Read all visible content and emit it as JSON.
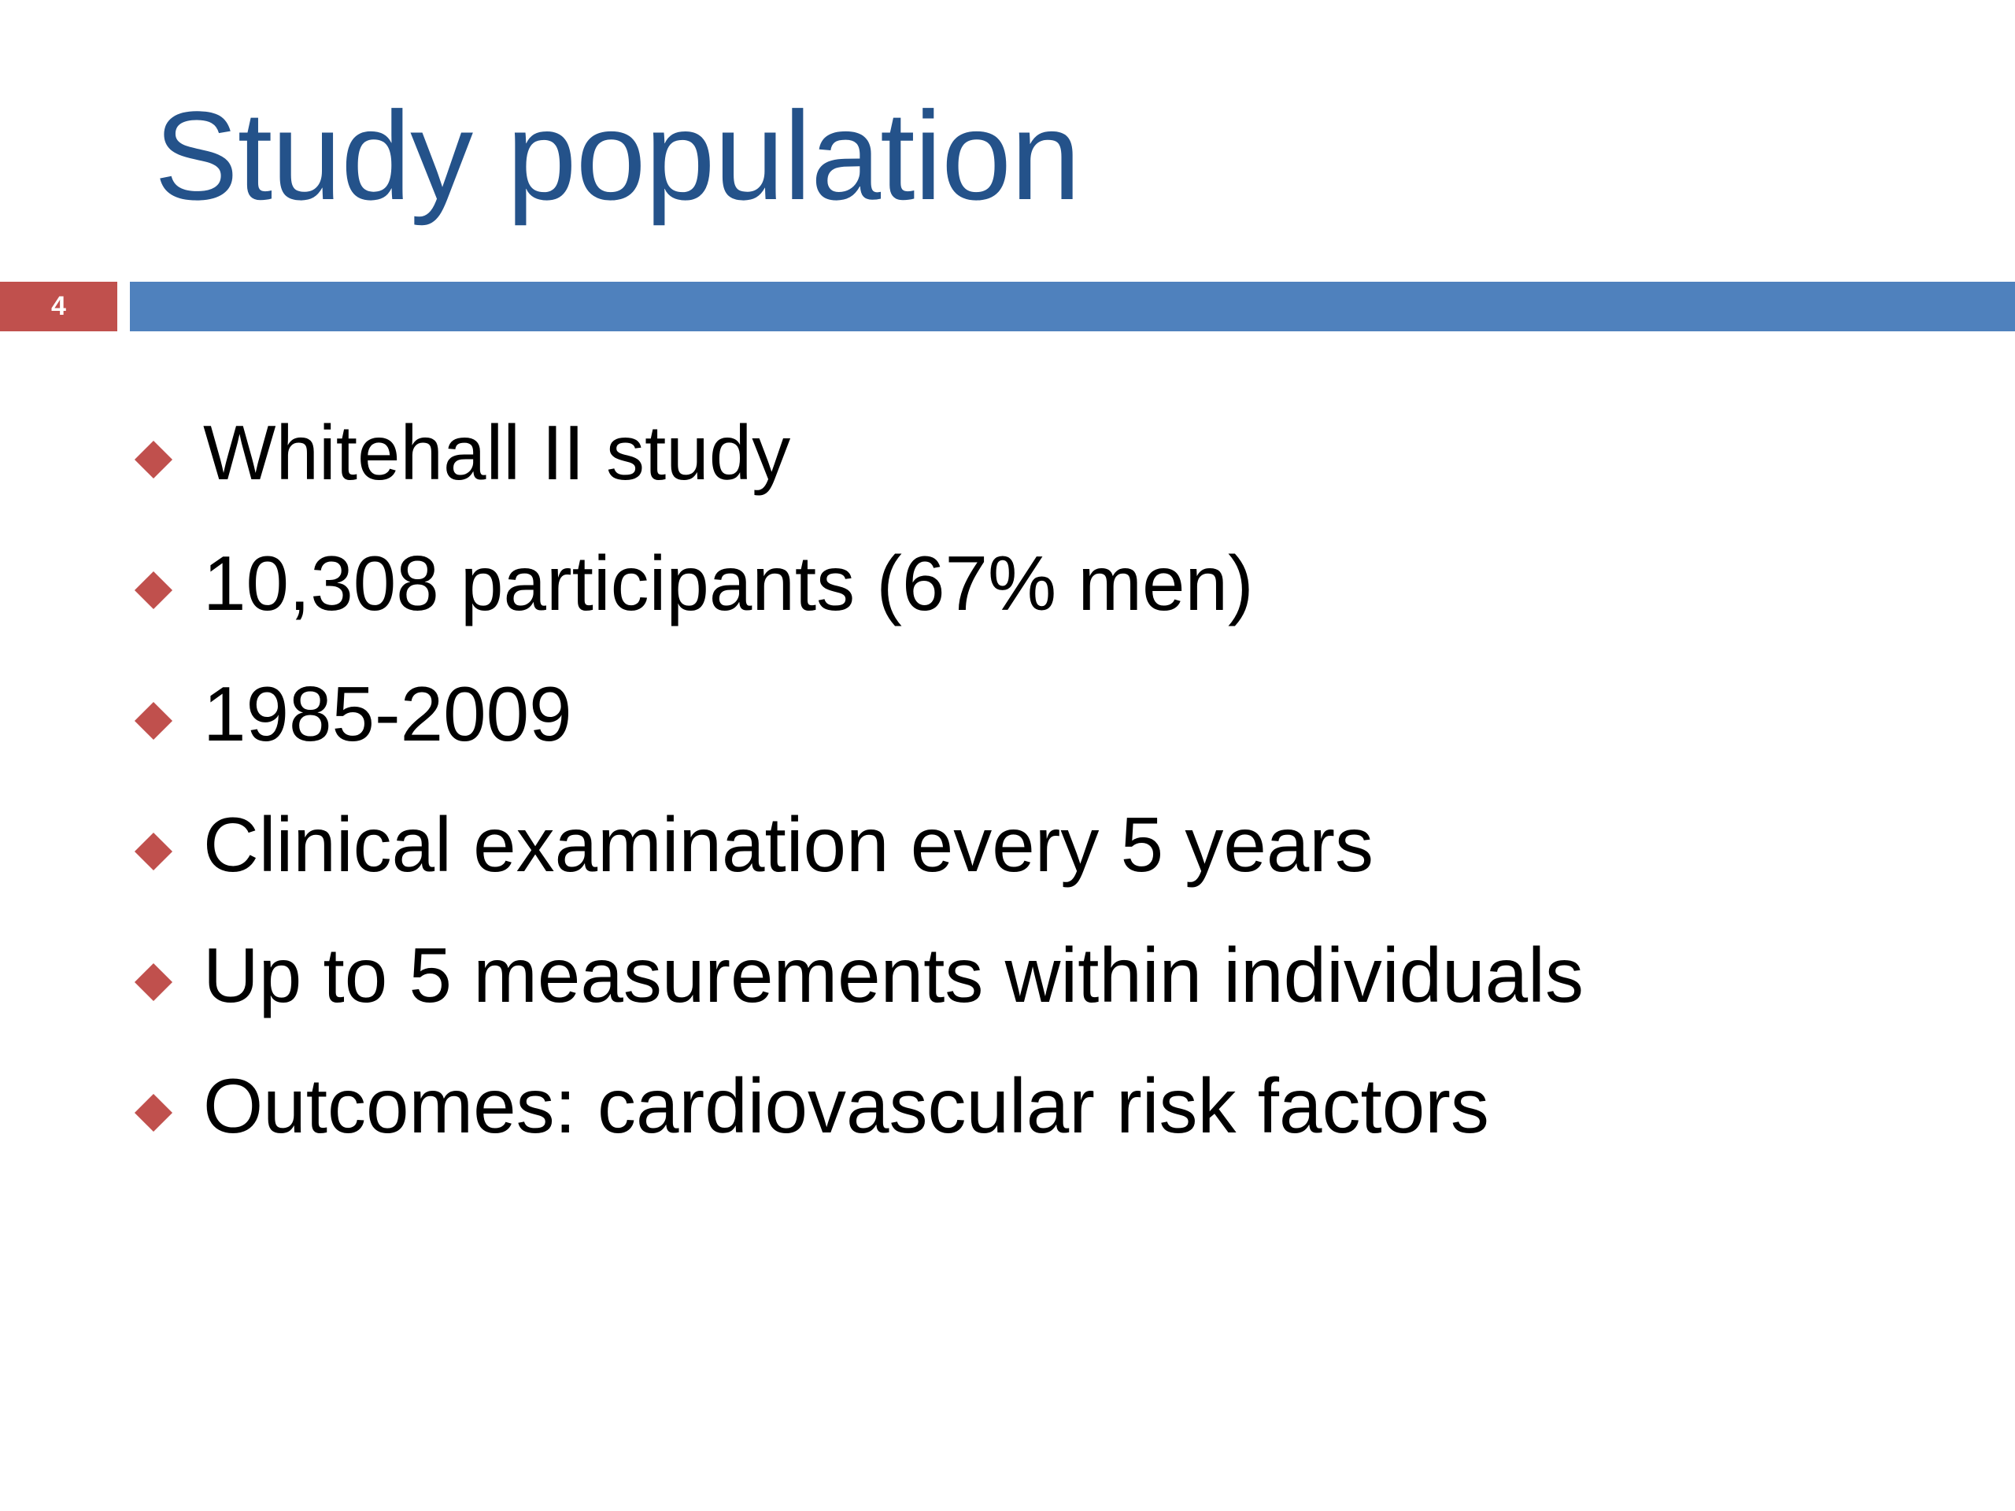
{
  "slide": {
    "title": "Study population",
    "number": "4",
    "colors": {
      "title": "#24528a",
      "accent_bar": "#4f81bd",
      "number_box": "#c0504d",
      "bullet": "#c0504d",
      "text": "#000000",
      "background": "#ffffff"
    },
    "bullet_icon": "diamond-bullet-icon",
    "bullets": [
      "Whitehall II study",
      "10,308 participants (67% men)",
      "1985-2009",
      "Clinical examination every 5 years",
      "Up to 5 measurements within individuals",
      "Outcomes: cardiovascular risk factors"
    ]
  }
}
